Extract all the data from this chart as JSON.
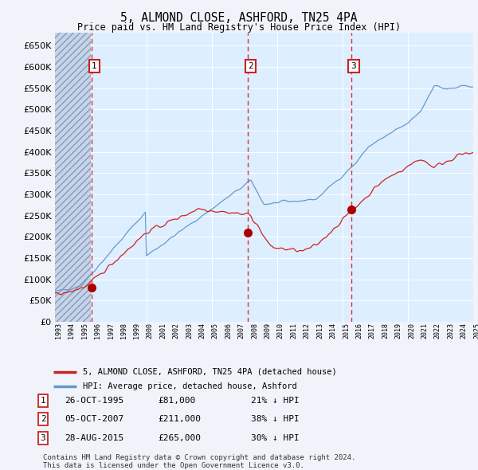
{
  "title": "5, ALMOND CLOSE, ASHFORD, TN25 4PA",
  "subtitle": "Price paid vs. HM Land Registry's House Price Index (HPI)",
  "ylim": [
    0,
    680000
  ],
  "yticks": [
    0,
    50000,
    100000,
    150000,
    200000,
    250000,
    300000,
    350000,
    400000,
    450000,
    500000,
    550000,
    600000,
    650000
  ],
  "fig_bg": "#f0f4fa",
  "plot_bg": "#ddeeff",
  "hatch_xmax": 1995.75,
  "hatch_color": "#c5d5e8",
  "grid_color": "#ffffff",
  "vline_color": "#e03030",
  "sale_marker_color": "#aa0000",
  "red_line_color": "#cc2222",
  "blue_line_color": "#6699cc",
  "legend_label_red": "5, ALMOND CLOSE, ASHFORD, TN25 4PA (detached house)",
  "legend_label_blue": "HPI: Average price, detached house, Ashford",
  "table_entries": [
    {
      "num": "1",
      "date": "26-OCT-1995",
      "price": "£81,000",
      "note": "21% ↓ HPI"
    },
    {
      "num": "2",
      "date": "05-OCT-2007",
      "price": "£211,000",
      "note": "38% ↓ HPI"
    },
    {
      "num": "3",
      "date": "28-AUG-2015",
      "price": "£265,000",
      "note": "30% ↓ HPI"
    }
  ],
  "footnote1": "Contains HM Land Registry data © Crown copyright and database right 2024.",
  "footnote2": "This data is licensed under the Open Government Licence v3.0.",
  "sale_year_floats": [
    1995.82,
    2007.76,
    2015.66
  ],
  "sale_prices": [
    81000,
    211000,
    265000
  ],
  "sale_labels": [
    "1",
    "2",
    "3"
  ],
  "xmin": 1993,
  "xmax": 2025,
  "xtick_years": [
    1993,
    1994,
    1995,
    1996,
    1997,
    1998,
    1999,
    2000,
    2001,
    2002,
    2003,
    2004,
    2005,
    2006,
    2007,
    2008,
    2009,
    2010,
    2011,
    2012,
    2013,
    2014,
    2015,
    2016,
    2017,
    2018,
    2019,
    2020,
    2021,
    2022,
    2023,
    2024,
    2025
  ]
}
